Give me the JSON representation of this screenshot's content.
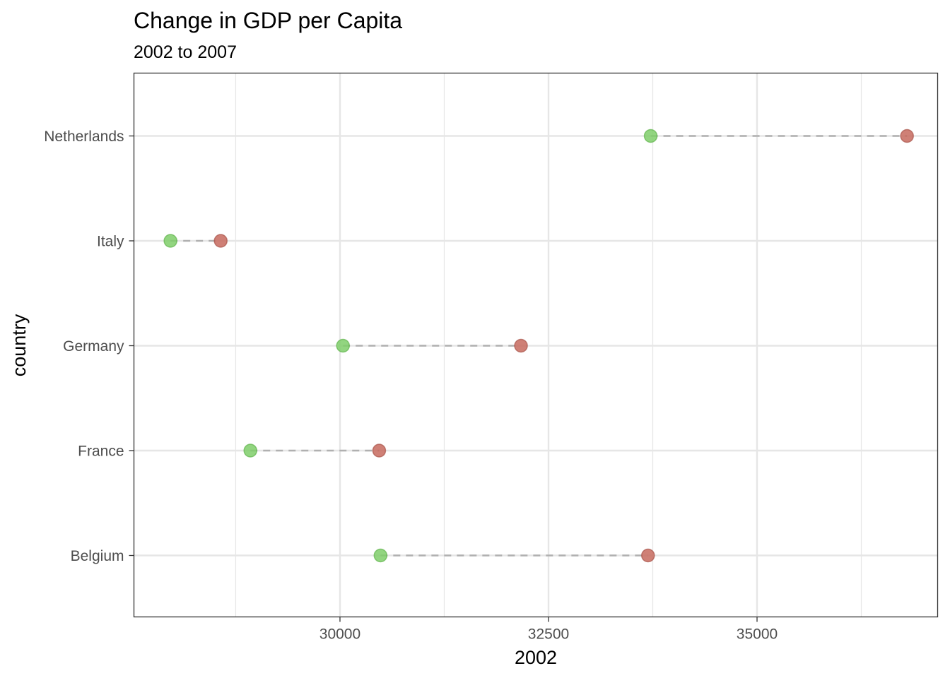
{
  "chart_data": {
    "type": "dumbbell",
    "title": "Change in GDP per Capita",
    "subtitle": "2002 to 2007",
    "xlabel": "2002",
    "ylabel": "country",
    "xlim": [
      27530,
      37165
    ],
    "x_ticks": [
      30000,
      32500,
      35000
    ],
    "x_tick_labels": [
      "30000",
      "32500",
      "35000"
    ],
    "x_minor_ticks": [
      28750,
      31250,
      33750,
      36250
    ],
    "grid": true,
    "categories": [
      "Belgium",
      "France",
      "Germany",
      "Italy",
      "Netherlands"
    ],
    "series": [
      {
        "values": [
          30486,
          28926,
          30036,
          27968,
          33725
        ]
      },
      {
        "values": [
          33693,
          30470,
          32170,
          28570,
          36798
        ]
      }
    ],
    "colors": {
      "start": "#7fce6a",
      "end": "#c76a5e",
      "segment": "#a6a6a6",
      "grid": "#e6e6e6",
      "panel_border": "#333333"
    }
  }
}
